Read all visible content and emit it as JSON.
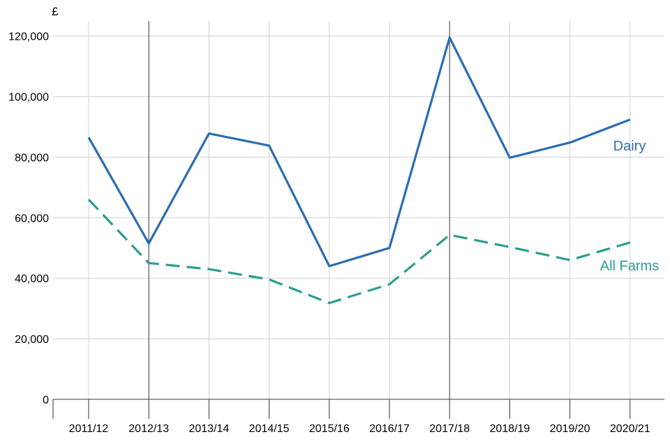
{
  "chart_data": {
    "type": "line",
    "title": "",
    "xlabel": "",
    "ylabel": "",
    "y_unit": "£",
    "categories": [
      "2011/12",
      "2012/13",
      "2013/14",
      "2014/15",
      "2015/16",
      "2016/17",
      "2017/18",
      "2018/19",
      "2019/20",
      "2020/21"
    ],
    "ylim": [
      0,
      120000
    ],
    "y_ticks": [
      0,
      20000,
      40000,
      60000,
      80000,
      100000,
      120000
    ],
    "y_tick_labels": [
      "0",
      "20,000",
      "40,000",
      "60,000",
      "80,000",
      "100,000",
      "120,000"
    ],
    "grid": true,
    "highlighted_categories": [
      "2012/13",
      "2017/18"
    ],
    "legend": "none (series labelled directly at line ends)",
    "series": [
      {
        "name": "Dairy",
        "values": [
          86500,
          51500,
          87800,
          83800,
          44000,
          50000,
          119500,
          79800,
          84800,
          92400
        ],
        "color": "#2b6cb0",
        "style": "solid"
      },
      {
        "name": "All Farms",
        "values": [
          66000,
          45000,
          43000,
          39600,
          31800,
          38000,
          54300,
          50300,
          46000,
          51800
        ],
        "color": "#2a9d8f",
        "style": "dashed"
      }
    ]
  }
}
